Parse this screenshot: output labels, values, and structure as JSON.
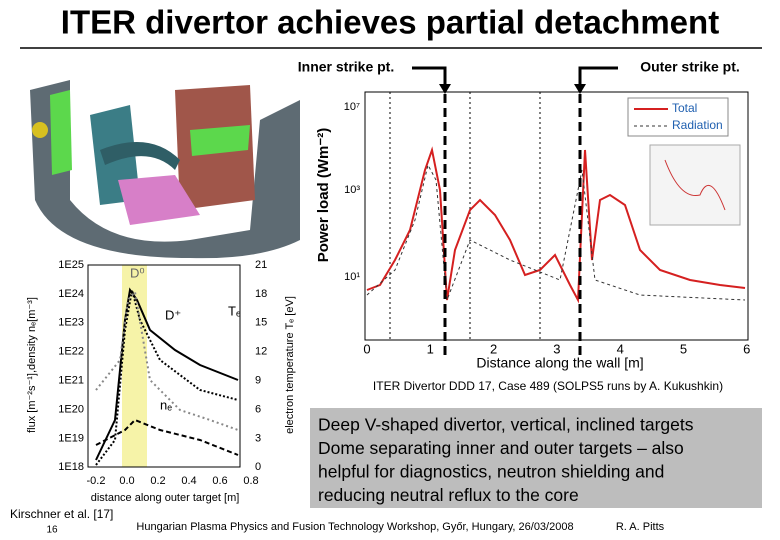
{
  "title": "ITER divertor achieves partial detachment",
  "power_plot": {
    "inner_label": "Inner strike pt.",
    "outer_label": "Outer strike pt.",
    "y_label": "Power load (Wm⁻²)",
    "x_label": "Distance along the wall [m]",
    "xticks": [
      "0",
      "1",
      "2",
      "3",
      "4",
      "5",
      "6"
    ],
    "yticks": [
      "10⁷",
      "10³",
      "10¹"
    ],
    "legend": [
      "Total",
      "Radiation"
    ],
    "caption": "ITER Divertor DDD 17, Case 489 (SOLPS5 runs by A. Kukushkin)"
  },
  "bullets": [
    "Deep V-shaped divertor, vertical, inclined targets",
    "Dome separating inner and outer targets – also",
    "helpful for diagnostics, neutron shielding and",
    "reducing neutral reflux to the core"
  ],
  "target_plot": {
    "yticks_left": [
      "1E25",
      "1E24",
      "1E23",
      "1E22",
      "1E21",
      "1E20",
      "1E19",
      "1E18"
    ],
    "yticks_right": [
      "21",
      "18",
      "15",
      "12",
      "9",
      "6",
      "3",
      "0"
    ],
    "xticks": [
      "-0.2",
      "0.0",
      "0.2",
      "0.4",
      "0.6",
      "0.8"
    ],
    "x_label": "distance along outer target [m]",
    "y_label": "flux [m⁻²s⁻¹],density nₑ[m⁻³]",
    "y2_label": "electron temperature Tₑ [eV]",
    "curve_labels": [
      "D⁰",
      "D⁺",
      "Tₑ",
      "nₑ"
    ]
  },
  "footer": {
    "reference": "Kirschner et al. [17]",
    "page": "16",
    "event": "Hungarian Plasma Physics and Fusion Technology Workshop, Győr, Hungary, 26/03/2008",
    "author": "R. A. Pitts"
  }
}
